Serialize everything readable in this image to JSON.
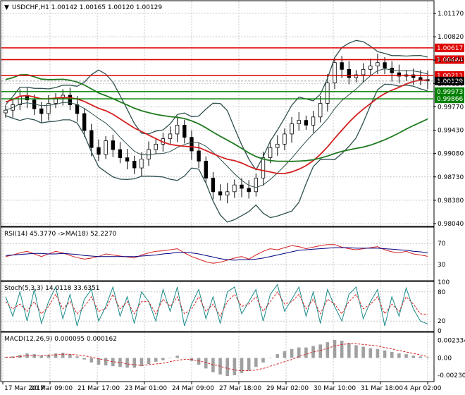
{
  "colors": {
    "background": "#ffffff",
    "grid": "#c8c8c8",
    "frame": "#000000",
    "candle": "#000000",
    "bollinger": "#2f4f4f",
    "ma_fast": "#d42020",
    "ma_slow": "#1f7a1f",
    "level_red": "#e00000",
    "level_green": "#008000",
    "rsi": "#d42020",
    "rsi_ma": "#000080",
    "stoch_main": "#1a8a8a",
    "stoch_signal": "#d42020",
    "macd_hist": "#a0a0a0",
    "macd_signal": "#d42020"
  },
  "header": {
    "arrow": "▼",
    "text": "USDCHF,H1  1.00142 1.00165 1.00120 1.00129"
  },
  "chart_data": [
    {
      "type": "candlestick",
      "symbol": "USDCHF",
      "timeframe": "H1",
      "ohlc_header": {
        "open": 1.00142,
        "high": 1.00165,
        "low": 1.0012,
        "close": 1.00129
      },
      "ylim": [
        0.98,
        1.013
      ],
      "y_ticks": [
        "1.01170",
        "1.00820",
        "1.00470",
        "1.00120",
        "0.99770",
        "0.99430",
        "0.99080",
        "0.98730",
        "0.98380",
        "0.98040"
      ],
      "x_ticks": [
        "17 Mar 2017",
        "20 Mar 09:00",
        "21 Mar 17:00",
        "23 Mar 01:00",
        "24 Mar 09:00",
        "27 Mar 18:00",
        "29 Mar 02:00",
        "30 Mar 10:00",
        "31 Mar 18:00",
        "4 Apr 02:00"
      ],
      "price_levels": [
        {
          "value": 1.00617,
          "label": "1.00617",
          "color": "#e00000"
        },
        {
          "value": 1.00444,
          "label": "1.00444",
          "color": "#e00000"
        },
        {
          "value": 1.00211,
          "label": "1.00211",
          "color": "#e00000"
        },
        {
          "value": 0.99973,
          "label": "0.99973",
          "color": "#008000"
        },
        {
          "value": 0.99866,
          "label": "0.99866",
          "color": "#008000"
        }
      ],
      "current_price": {
        "value": 1.00129,
        "label": "1.00129"
      },
      "close_series": [
        0.997,
        0.9978,
        0.999,
        0.9985,
        0.9972,
        0.9965,
        0.998,
        0.9988,
        0.9992,
        0.9978,
        0.9965,
        0.994,
        0.9915,
        0.9905,
        0.9925,
        0.9912,
        0.99,
        0.9895,
        0.9885,
        0.9898,
        0.9912,
        0.992,
        0.9928,
        0.9935,
        0.9948,
        0.993,
        0.991,
        0.9895,
        0.987,
        0.985,
        0.9845,
        0.985,
        0.986,
        0.9855,
        0.985,
        0.987,
        0.99,
        0.9915,
        0.992,
        0.9935,
        0.995,
        0.9955,
        0.9948,
        0.996,
        0.998,
        1.001,
        1.004,
        1.003,
        1.0018,
        1.0022,
        1.003,
        1.0035,
        1.004,
        1.0032,
        1.0025,
        1.002,
        1.0022,
        1.0018,
        1.0015,
        1.0013
      ]
    },
    {
      "type": "line",
      "name": "RSI(14) 45.3770 ->MA(18) 52.2270",
      "ylim": [
        0,
        100
      ],
      "levels": [
        70,
        30
      ],
      "y_ticks": [
        "70",
        "30"
      ],
      "values": [
        45,
        48,
        52,
        55,
        50,
        45,
        50,
        55,
        52,
        47,
        43,
        40,
        42,
        45,
        50,
        48,
        46,
        44,
        42,
        48,
        52,
        55,
        56,
        58,
        60,
        52,
        45,
        40,
        35,
        32,
        34,
        38,
        42,
        45,
        40,
        48,
        55,
        60,
        58,
        62,
        66,
        64,
        60,
        63,
        66,
        68,
        68,
        63,
        60,
        58,
        60,
        62,
        64,
        58,
        54,
        52,
        55,
        50,
        48,
        45.377
      ],
      "ma_values": [
        47,
        48,
        49,
        50,
        51,
        51,
        50,
        50,
        51,
        50,
        49,
        47,
        46,
        45,
        45,
        45,
        45,
        45,
        45,
        46,
        47,
        48,
        50,
        51,
        53,
        53,
        52,
        50,
        47,
        44,
        41,
        39,
        38,
        39,
        39,
        40,
        42,
        45,
        48,
        51,
        54,
        57,
        58,
        59,
        60,
        61,
        62,
        62,
        62,
        61,
        61,
        61,
        61,
        60,
        59,
        58,
        57,
        55,
        54,
        52.227
      ]
    },
    {
      "type": "line",
      "name": "Stoch(5,3,3) 14.0118 33.6351",
      "ylim": [
        0,
        100
      ],
      "levels": [
        80,
        20
      ],
      "y_ticks": [
        "100",
        "80",
        "20",
        "0"
      ],
      "values": [
        70,
        30,
        80,
        20,
        85,
        15,
        60,
        90,
        25,
        75,
        10,
        65,
        85,
        20,
        50,
        90,
        30,
        70,
        15,
        80,
        60,
        20,
        85,
        40,
        90,
        10,
        55,
        85,
        25,
        70,
        15,
        80,
        90,
        35,
        60,
        85,
        20,
        75,
        95,
        40,
        65,
        90,
        30,
        80,
        15,
        85,
        50,
        20,
        75,
        90,
        25,
        60,
        85,
        10,
        70,
        30,
        88,
        45,
        20,
        14.0118
      ],
      "signal_values": [
        60,
        45,
        55,
        40,
        60,
        35,
        50,
        75,
        45,
        60,
        35,
        50,
        70,
        40,
        45,
        75,
        45,
        60,
        35,
        60,
        60,
        35,
        65,
        50,
        70,
        35,
        45,
        70,
        40,
        55,
        30,
        60,
        75,
        50,
        55,
        70,
        40,
        60,
        80,
        55,
        60,
        75,
        45,
        65,
        35,
        65,
        55,
        35,
        60,
        75,
        45,
        55,
        70,
        35,
        55,
        40,
        70,
        55,
        35,
        33.6351
      ]
    },
    {
      "type": "bar",
      "name": "MACD(12,26,9) 0.000095 0.000162",
      "ylim": [
        -0.00306,
        0.00334
      ],
      "y_ticks": [
        "0.002334",
        "0.00",
        "-0.002306"
      ],
      "values": [
        0.0001,
        0.0002,
        0.0004,
        0.0006,
        0.0005,
        0.0003,
        0.0004,
        0.0006,
        0.0007,
        0.0005,
        0.0002,
        -0.0002,
        -0.0006,
        -0.0009,
        -0.001,
        -0.0011,
        -0.0012,
        -0.0013,
        -0.0013,
        -0.0011,
        -0.0008,
        -0.0005,
        -0.0003,
        0.0,
        0.0003,
        0.0,
        -0.0004,
        -0.0009,
        -0.0014,
        -0.0019,
        -0.0022,
        -0.0024,
        -0.0023,
        -0.002,
        -0.0017,
        -0.0012,
        -0.0006,
        0.0,
        0.0005,
        0.0009,
        0.0012,
        0.0014,
        0.0014,
        0.0016,
        0.0018,
        0.0021,
        0.0024,
        0.0023,
        0.002,
        0.0017,
        0.0015,
        0.0013,
        0.0012,
        0.001,
        0.0008,
        0.0006,
        0.0005,
        0.0003,
        0.0002,
        9.5e-05
      ],
      "signal_values": [
        0.0001,
        0.0001,
        0.0002,
        0.0003,
        0.0003,
        0.0003,
        0.0004,
        0.0004,
        0.0005,
        0.0005,
        0.0004,
        0.0003,
        0.0001,
        -0.0001,
        -0.0003,
        -0.0005,
        -0.0006,
        -0.0008,
        -0.0009,
        -0.001,
        -0.0009,
        -0.0008,
        -0.0007,
        -0.0005,
        -0.0003,
        -0.0002,
        -0.0002,
        -0.0004,
        -0.0006,
        -0.0009,
        -0.0011,
        -0.0014,
        -0.0016,
        -0.0017,
        -0.0017,
        -0.0016,
        -0.0014,
        -0.0011,
        -0.0008,
        -0.0005,
        -0.0002,
        0.0002,
        0.0005,
        0.0008,
        0.001,
        0.0013,
        0.0016,
        0.0018,
        0.0019,
        0.0019,
        0.0018,
        0.0017,
        0.0016,
        0.0014,
        0.0012,
        0.001,
        0.0008,
        0.0006,
        0.0004,
        0.000162
      ]
    }
  ]
}
